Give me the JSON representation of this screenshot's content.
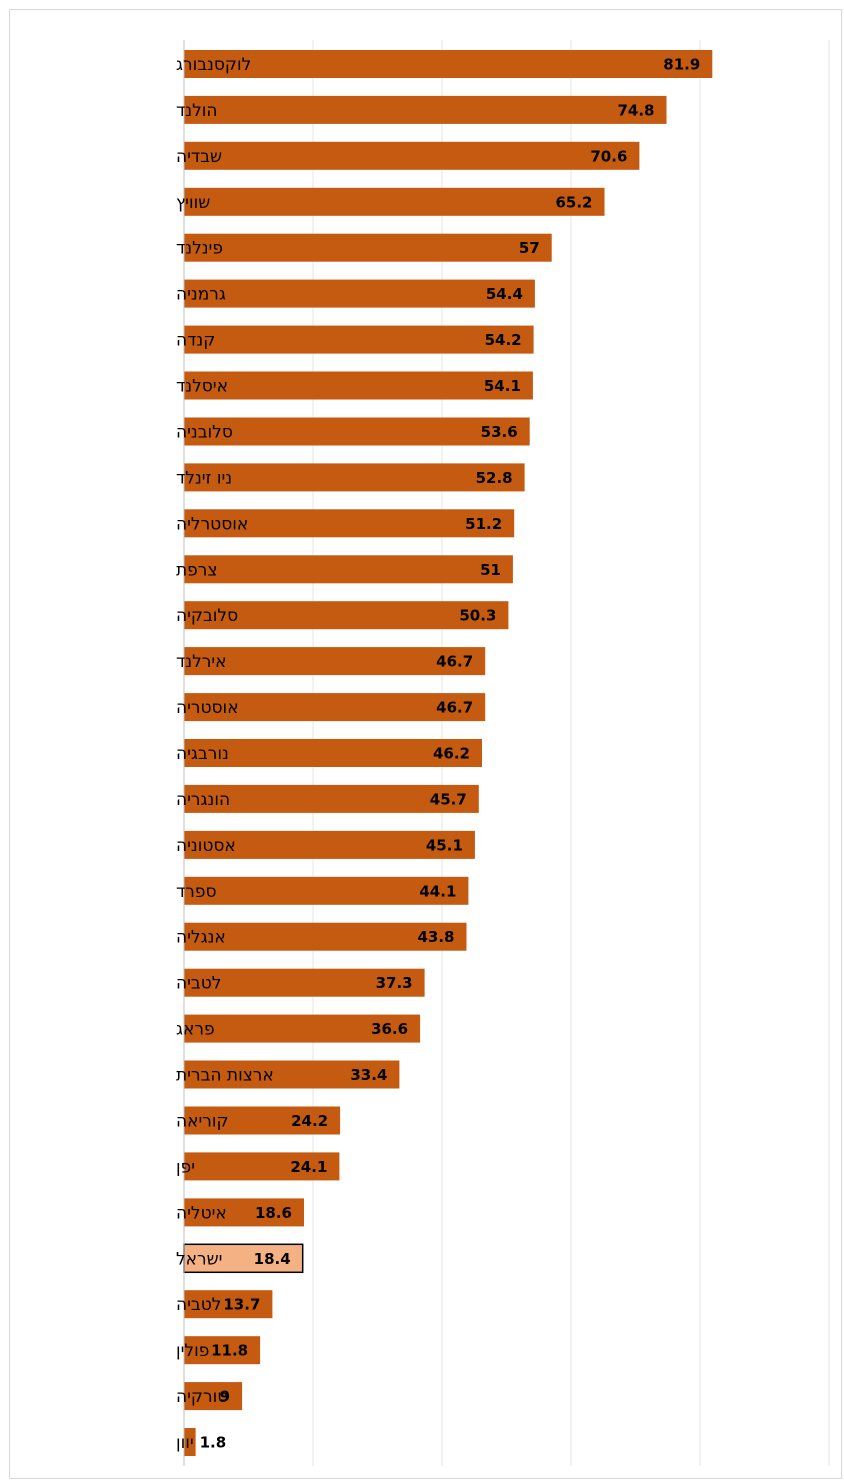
{
  "chart_data": {
    "type": "bar",
    "orientation": "horizontal",
    "title": "",
    "xlabel": "",
    "ylabel": "",
    "xlim": [
      0,
      100
    ],
    "grid": "vertical",
    "legend": "none",
    "categories": [
      "לוקסנבורג",
      "הולנד",
      "שבדיה",
      "שוויץ",
      "פינלנד",
      "גרמניה",
      "קנדה",
      "איסלנד",
      "סלובניה",
      "ניו זינלד",
      "אוסטרליה",
      "צרפת",
      "סלובקיה",
      "אירלנד",
      "אוסטריה",
      "נורבגיה",
      "הונגריה",
      "אסטוניה",
      "ספרד",
      "אנגליה",
      "לטביה",
      "פראג",
      "ארצות הברית",
      "קוריאה",
      "יפן",
      "איטליה",
      "ישראל",
      "לטביה",
      "פולין",
      "טורקיה",
      "יוון"
    ],
    "values": [
      81.9,
      74.8,
      70.6,
      65.2,
      57,
      54.4,
      54.2,
      54.1,
      53.6,
      52.8,
      51.2,
      51,
      50.3,
      46.7,
      46.7,
      46.2,
      45.7,
      45.1,
      44.1,
      43.8,
      37.3,
      36.6,
      33.4,
      24.2,
      24.1,
      18.6,
      18.4,
      13.7,
      11.8,
      9,
      1.8
    ],
    "value_labels": [
      "81.9",
      "74.8",
      "70.6",
      "65.2",
      "57",
      "54.4",
      "54.2",
      "54.1",
      "53.6",
      "52.8",
      "51.2",
      "51",
      "50.3",
      "46.7",
      "46.7",
      "46.2",
      "45.7",
      "45.1",
      "44.1",
      "43.8",
      "37.3",
      "36.6",
      "33.4",
      "24.2",
      "24.1",
      "18.6",
      "18.4",
      "13.7",
      "11.8",
      "9",
      "1.8"
    ],
    "highlight_index": 26,
    "colors": {
      "bar": "#C55A11",
      "highlight": "#F4B183",
      "highlight_border": "#000000",
      "grid": "#e6e6e6",
      "axis": "#bfbfbf"
    }
  }
}
